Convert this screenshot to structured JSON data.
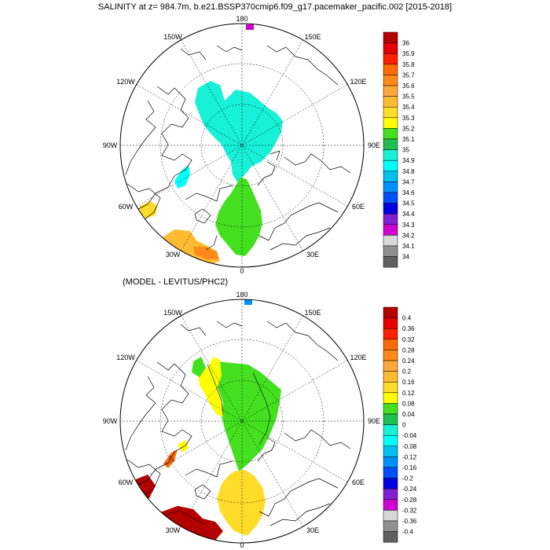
{
  "title": "SALINITY at z= 984.7m, b.e21.BSSP370cmip6.f09_g17.pacemaker_pacific.002 [2015-2018]",
  "subtitle": "(MODEL - LEVITUS/PHC2)",
  "lon_labels": {
    "top": "180",
    "ne": "150E",
    "e1": "120E",
    "e2": "90E",
    "e3": "60E",
    "se": "30E",
    "bottom": "0",
    "sw": "30W",
    "w3": "60W",
    "w2": "90W",
    "w1": "120W",
    "nw": "150W"
  },
  "salinity_legend": {
    "labels": [
      "36",
      "35.9",
      "35.8",
      "35.7",
      "35.6",
      "35.5",
      "35.4",
      "35.3",
      "35.2",
      "35.1",
      "35",
      "34.9",
      "34.8",
      "34.7",
      "34.6",
      "34.5",
      "34.4",
      "34.3",
      "34.2",
      "34.1",
      "34"
    ],
    "colors": [
      "#b50000",
      "#e60000",
      "#ff2000",
      "#ff6a00",
      "#ff8a1a",
      "#ffa83c",
      "#ffbc33",
      "#ffdb2a",
      "#ffff00",
      "#44e020",
      "#20c050",
      "#18f0d8",
      "#00ffff",
      "#00c0f0",
      "#0090ff",
      "#0050ff",
      "#0000e0",
      "#8020d0",
      "#d000d0",
      "#d8d8d8",
      "#909090",
      "#606060"
    ]
  },
  "difference_legend": {
    "labels": [
      "0.4",
      "0.36",
      "0.32",
      "0.28",
      "0.24",
      "0.2",
      "0.16",
      "0.12",
      "0.08",
      "0.04",
      "0",
      "-0.04",
      "-0.08",
      "-0.12",
      "-0.16",
      "-0.2",
      "-0.24",
      "-0.28",
      "-0.32",
      "-0.36",
      "-0.4"
    ],
    "colors": [
      "#b50000",
      "#e60000",
      "#ff2000",
      "#ff6a00",
      "#ff8a1a",
      "#ffa83c",
      "#ffbc33",
      "#ffdb2a",
      "#ffff00",
      "#44e020",
      "#20c050",
      "#18f0d8",
      "#00ffff",
      "#00c0f0",
      "#0090ff",
      "#0050ff",
      "#0000e0",
      "#8020d0",
      "#d000d0",
      "#d8d8d8",
      "#909090",
      "#606060"
    ]
  },
  "field_colors": {
    "top_arctic": "#18f0d8",
    "top_atlantic": "#44e020",
    "top_baffin": "#00ffff",
    "top_labrador": "#ffdb2a",
    "top_irminger": "#ffbc33",
    "top_irminger_core": "#ff8a1a",
    "top_bering": "#d000d0",
    "bottom_arctic": "#44e020",
    "bottom_canada": "#ffff00",
    "bottom_nordic": "#ffdb2a",
    "bottom_labrador": "#ff6a00",
    "bottom_irminger": "#b50000",
    "bottom_bering": "#0090ff"
  }
}
